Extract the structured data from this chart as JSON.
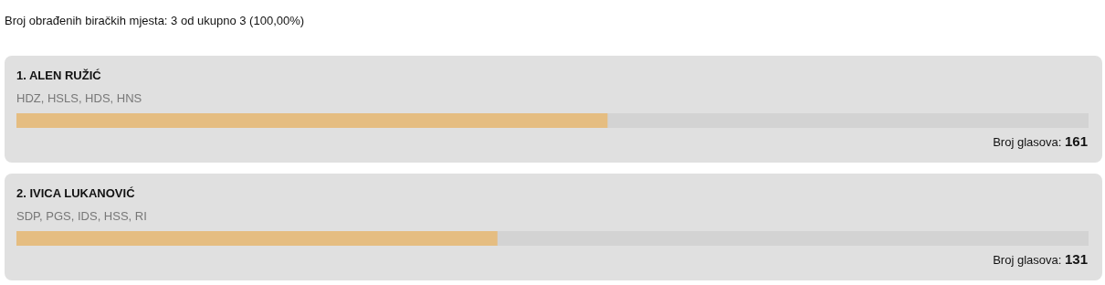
{
  "chart_data": {
    "type": "bar",
    "orientation": "horizontal",
    "title": "Broj obrađenih biračkih mjesta: 3 od ukupno 3 (100,00%)",
    "categories": [
      "1. ALEN RUŽIĆ",
      "2. IVICA LUKANOVIĆ"
    ],
    "values": [
      161,
      131
    ],
    "value_labels": [
      "Broj glasova: 161",
      "Broj glasova: 131"
    ],
    "annotations": [
      "HDZ, HSLS, HDS, HNS",
      "SDP, PGS, IDS, HSS, RI"
    ],
    "color": "#e5bd81",
    "xlim": [
      0,
      292
    ]
  }
}
